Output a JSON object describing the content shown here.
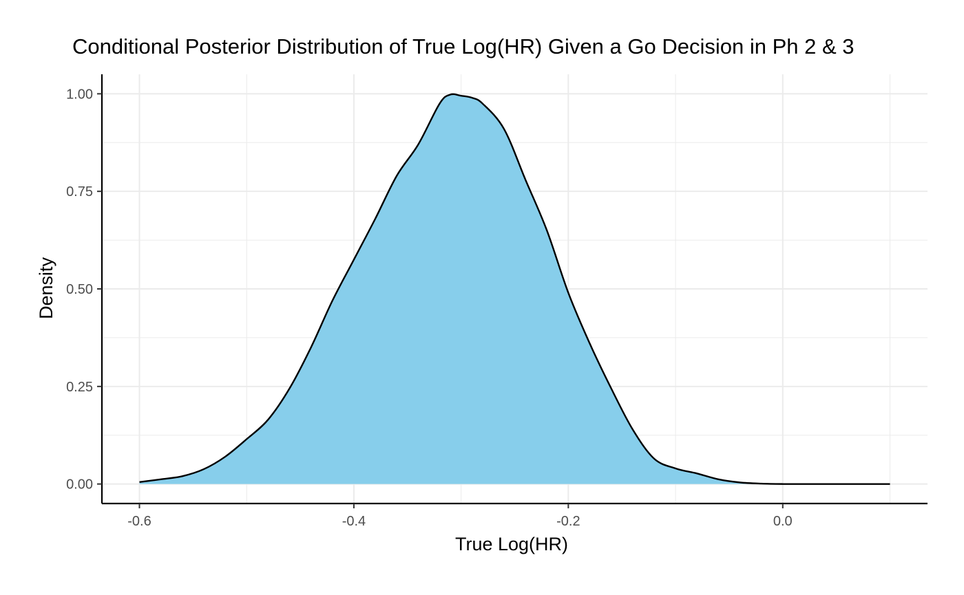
{
  "chart_data": {
    "type": "area",
    "title": "Conditional Posterior Distribution of True Log(HR) Given a Go Decision in Ph 2 & 3",
    "xlabel": "True Log(HR)",
    "ylabel": "Density",
    "xlim": [
      -0.635,
      0.135
    ],
    "ylim": [
      -0.05,
      1.05
    ],
    "x_ticks": [
      -0.6,
      -0.4,
      -0.2,
      0.0
    ],
    "x_tick_labels": [
      "-0.6",
      "-0.4",
      "-0.2",
      "0.0"
    ],
    "y_ticks": [
      0,
      0.25,
      0.5,
      0.75,
      1.0
    ],
    "y_tick_labels": [
      "0.00",
      "0.25",
      "0.50",
      "0.75",
      "1.00"
    ],
    "grid": true,
    "fill_color": "#87ceeb",
    "line_color": "#000000",
    "series": [
      {
        "x": [
          -0.6,
          -0.58,
          -0.56,
          -0.54,
          -0.52,
          -0.5,
          -0.48,
          -0.46,
          -0.44,
          -0.42,
          -0.4,
          -0.38,
          -0.36,
          -0.34,
          -0.32,
          -0.31,
          -0.3,
          -0.29,
          -0.28,
          -0.26,
          -0.24,
          -0.22,
          -0.2,
          -0.18,
          -0.16,
          -0.14,
          -0.12,
          -0.1,
          -0.08,
          -0.06,
          -0.04,
          -0.02,
          0.0,
          0.02,
          0.04,
          0.06,
          0.08,
          0.1
        ],
        "values": [
          0.005,
          0.012,
          0.02,
          0.038,
          0.07,
          0.115,
          0.165,
          0.245,
          0.35,
          0.47,
          0.575,
          0.68,
          0.79,
          0.87,
          0.975,
          0.998,
          0.995,
          0.99,
          0.975,
          0.91,
          0.78,
          0.65,
          0.49,
          0.36,
          0.245,
          0.14,
          0.065,
          0.04,
          0.027,
          0.012,
          0.004,
          0.001,
          0.0,
          0.0,
          0.0,
          0.0,
          0.0,
          0.0
        ]
      }
    ]
  }
}
